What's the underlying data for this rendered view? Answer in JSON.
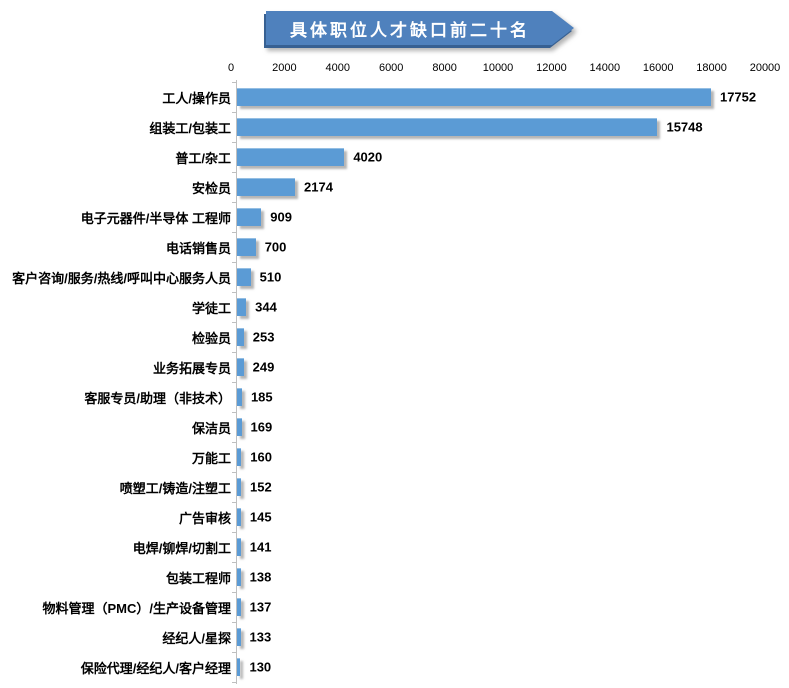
{
  "chart_data": {
    "type": "bar",
    "orientation": "horizontal",
    "title": "具体职位人才缺口前二十名",
    "xlabel": "",
    "ylabel": "",
    "xlim": [
      0,
      20000
    ],
    "x_ticks": [
      0,
      2000,
      4000,
      6000,
      8000,
      10000,
      12000,
      14000,
      16000,
      18000,
      20000
    ],
    "grid": false,
    "legend": false,
    "value_labels": true,
    "categories": [
      "工人/操作员",
      "组装工/包装工",
      "普工/杂工",
      "安检员",
      "电子元器件/半导体 工程师",
      "电话销售员",
      "客户咨询/服务/热线/呼叫中心服务人员",
      "学徒工",
      "检验员",
      "业务拓展专员",
      "客服专员/助理（非技术）",
      "保洁员",
      "万能工",
      "喷塑工/铸造/注塑工",
      "广告审核",
      "电焊/铆焊/切割工",
      "包装工程师",
      "物料管理（PMC）/生产设备管理",
      "经纪人/星探",
      "保险代理/经纪人/客户经理"
    ],
    "values": [
      17752,
      15748,
      4020,
      2174,
      909,
      700,
      510,
      344,
      253,
      249,
      185,
      169,
      160,
      152,
      145,
      141,
      138,
      137,
      133,
      130
    ]
  },
  "colors": {
    "bar_fill": "#5B9BD5",
    "banner_fill": "#4F81BD",
    "banner_edge": "#376092",
    "banner_text": "#FFFFFF",
    "axis_line": "#BFBFBF",
    "label_text": "#000000"
  }
}
